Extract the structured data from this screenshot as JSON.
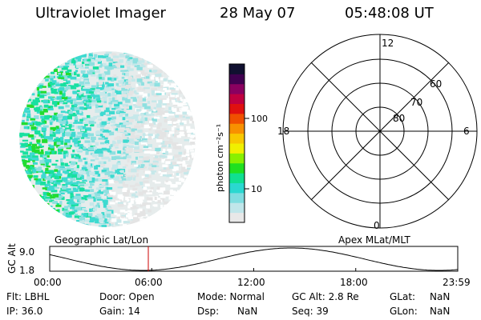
{
  "header": {
    "instrument": "Ultraviolet Imager",
    "date": "28 May 07",
    "time": "05:48:08 UT"
  },
  "colorbar": {
    "label": "photon cm⁻²s⁻¹",
    "ticks": [
      "100",
      "10"
    ],
    "colors": [
      "#e8e8e8",
      "#c0e6ea",
      "#80dde0",
      "#2ad8d0",
      "#10e090",
      "#20e020",
      "#88f000",
      "#f0f000",
      "#f8c800",
      "#f89000",
      "#f05000",
      "#e01010",
      "#c00040",
      "#8a0060",
      "#400050",
      "#101030"
    ]
  },
  "polar": {
    "mlt_labels": [
      "12",
      "6",
      "0",
      "18"
    ],
    "lat_labels": [
      "60",
      "70",
      "80"
    ]
  },
  "timeline": {
    "ylabel": "GC Alt",
    "yticks": [
      "9.0",
      "1.8"
    ],
    "left_title": "Geographic Lat/Lon",
    "right_title": "Apex MLat/MLT",
    "xticks": [
      "00:00",
      "06:00",
      "12:00",
      "18:00",
      "23:59"
    ],
    "current_hour": 5.8
  },
  "info": {
    "row1": {
      "flt": "Flt: LBHL",
      "door": "Door: Open",
      "mode": "Mode: Normal",
      "gcalt": "GC Alt: 2.8 Re",
      "glat_label": "GLat:",
      "glat_val": "NaN"
    },
    "row2": {
      "ip": "IP: 36.0",
      "gain": "Gain: 14",
      "dsp_label": "Dsp:",
      "dsp_val": "NaN",
      "seq": "Seq: 39",
      "glon_label": "GLon:",
      "glon_val": "NaN"
    }
  }
}
